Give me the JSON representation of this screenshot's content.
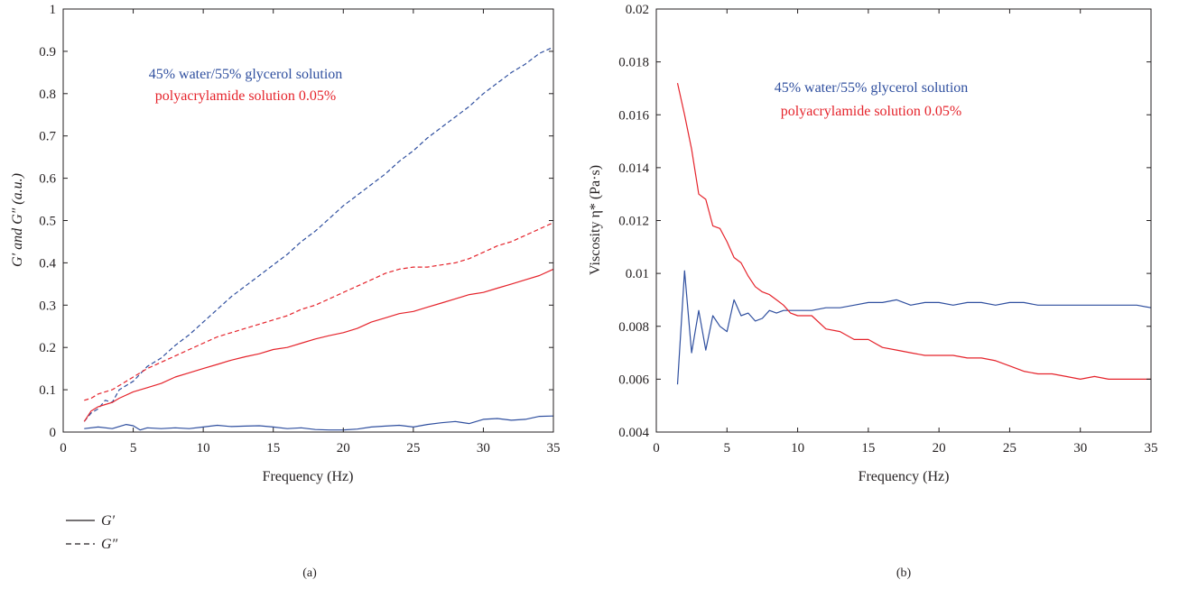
{
  "colors": {
    "water_glycerol": "#2f4f9f",
    "polyacrylamide": "#e5232b",
    "axis": "#231f20"
  },
  "legend": {
    "solid_label": "G′",
    "dashed_label": "G″"
  },
  "chart_data": [
    {
      "panel_label": "(a)",
      "type": "line",
      "xlabel": "Frequency (Hz)",
      "ylabel": "G′ and G″ (a.u.)",
      "xlim": [
        0,
        35
      ],
      "ylim": [
        0,
        1
      ],
      "xticks": [
        "0",
        "5",
        "10",
        "15",
        "20",
        "25",
        "30",
        "35"
      ],
      "yticks": [
        "0",
        "0.1",
        "0.2",
        "0.3",
        "0.4",
        "0.5",
        "0.6",
        "0.7",
        "0.8",
        "0.9",
        "1"
      ],
      "grid": false,
      "annotations": [
        "45% water/55% glycerol solution",
        "polyacrylamide solution 0.05%"
      ],
      "series": [
        {
          "fluid": "45% water/55% glycerol solution",
          "modulus": "G′",
          "style": "solid",
          "x": [
            1.5,
            2.5,
            3.5,
            4.5,
            5,
            5.5,
            6,
            7,
            8,
            9,
            10,
            11,
            12,
            13,
            14,
            15,
            16,
            17,
            18,
            19,
            20,
            21,
            22,
            23,
            24,
            25,
            26,
            27,
            28,
            29,
            30,
            31,
            32,
            33,
            34,
            35
          ],
          "y": [
            0.008,
            0.012,
            0.008,
            0.018,
            0.015,
            0.005,
            0.01,
            0.008,
            0.01,
            0.008,
            0.012,
            0.016,
            0.013,
            0.014,
            0.015,
            0.012,
            0.008,
            0.01,
            0.006,
            0.005,
            0.005,
            0.007,
            0.012,
            0.014,
            0.016,
            0.012,
            0.018,
            0.022,
            0.025,
            0.02,
            0.03,
            0.032,
            0.028,
            0.03,
            0.037,
            0.038
          ]
        },
        {
          "fluid": "45% water/55% glycerol solution",
          "modulus": "G″",
          "style": "dashed",
          "x": [
            1.5,
            2,
            2.5,
            3,
            3.5,
            4,
            5,
            6,
            7,
            8,
            9,
            10,
            11,
            12,
            13,
            14,
            15,
            16,
            17,
            18,
            19,
            20,
            21,
            22,
            23,
            24,
            25,
            26,
            27,
            28,
            29,
            30,
            31,
            32,
            33,
            34,
            35
          ],
          "y": [
            0.025,
            0.045,
            0.055,
            0.075,
            0.07,
            0.1,
            0.12,
            0.155,
            0.175,
            0.205,
            0.23,
            0.26,
            0.29,
            0.32,
            0.345,
            0.37,
            0.395,
            0.42,
            0.45,
            0.475,
            0.505,
            0.535,
            0.56,
            0.585,
            0.61,
            0.64,
            0.665,
            0.695,
            0.72,
            0.745,
            0.77,
            0.8,
            0.825,
            0.85,
            0.87,
            0.895,
            0.91
          ]
        },
        {
          "fluid": "polyacrylamide solution 0.05%",
          "modulus": "G′",
          "style": "solid",
          "x": [
            1.5,
            2,
            2.5,
            3,
            3.5,
            4,
            5,
            6,
            7,
            8,
            9,
            10,
            11,
            12,
            13,
            14,
            15,
            16,
            17,
            18,
            19,
            20,
            21,
            22,
            23,
            24,
            25,
            26,
            27,
            28,
            29,
            30,
            31,
            32,
            33,
            34,
            35
          ],
          "y": [
            0.025,
            0.05,
            0.06,
            0.065,
            0.07,
            0.08,
            0.095,
            0.105,
            0.115,
            0.13,
            0.14,
            0.15,
            0.16,
            0.17,
            0.178,
            0.185,
            0.195,
            0.2,
            0.21,
            0.22,
            0.228,
            0.235,
            0.245,
            0.26,
            0.27,
            0.28,
            0.285,
            0.295,
            0.305,
            0.315,
            0.325,
            0.33,
            0.34,
            0.35,
            0.36,
            0.37,
            0.385
          ]
        },
        {
          "fluid": "polyacrylamide solution 0.05%",
          "modulus": "G″",
          "style": "dashed",
          "x": [
            1.5,
            2,
            2.5,
            3,
            3.5,
            4,
            5,
            6,
            7,
            8,
            9,
            10,
            11,
            12,
            13,
            14,
            15,
            16,
            17,
            18,
            19,
            20,
            21,
            22,
            23,
            24,
            25,
            26,
            27,
            28,
            29,
            30,
            31,
            32,
            33,
            34,
            35
          ],
          "y": [
            0.075,
            0.08,
            0.09,
            0.095,
            0.1,
            0.11,
            0.13,
            0.15,
            0.165,
            0.18,
            0.195,
            0.21,
            0.225,
            0.235,
            0.245,
            0.255,
            0.265,
            0.275,
            0.29,
            0.3,
            0.315,
            0.33,
            0.345,
            0.36,
            0.375,
            0.385,
            0.39,
            0.39,
            0.395,
            0.4,
            0.41,
            0.425,
            0.44,
            0.45,
            0.465,
            0.48,
            0.495
          ]
        }
      ]
    },
    {
      "panel_label": "(b)",
      "type": "line",
      "xlabel": "Frequency (Hz)",
      "ylabel": "Viscosity η* (Pa·s)",
      "xlim": [
        0,
        35
      ],
      "ylim": [
        0.004,
        0.02
      ],
      "xticks": [
        "0",
        "5",
        "10",
        "15",
        "20",
        "25",
        "30",
        "35"
      ],
      "yticks": [
        "0.004",
        "0.006",
        "0.008",
        "0.01",
        "0.012",
        "0.014",
        "0.016",
        "0.018",
        "0.02"
      ],
      "grid": false,
      "annotations": [
        "45% water/55% glycerol solution",
        "polyacrylamide solution 0.05%"
      ],
      "series": [
        {
          "fluid": "45% water/55% glycerol solution",
          "style": "solid",
          "x": [
            1.5,
            2,
            2.5,
            3,
            3.5,
            4,
            4.5,
            5,
            5.5,
            6,
            6.5,
            7,
            7.5,
            8,
            8.5,
            9,
            9.5,
            10,
            11,
            12,
            13,
            14,
            15,
            16,
            17,
            18,
            19,
            20,
            21,
            22,
            23,
            24,
            25,
            26,
            27,
            28,
            29,
            30,
            31,
            32,
            33,
            34,
            35
          ],
          "y": [
            0.0058,
            0.0101,
            0.007,
            0.0086,
            0.0071,
            0.0084,
            0.008,
            0.0078,
            0.009,
            0.0084,
            0.0085,
            0.0082,
            0.0083,
            0.0086,
            0.0085,
            0.0086,
            0.0086,
            0.0086,
            0.0086,
            0.0087,
            0.0087,
            0.0088,
            0.0089,
            0.0089,
            0.009,
            0.0088,
            0.0089,
            0.0089,
            0.0088,
            0.0089,
            0.0089,
            0.0088,
            0.0089,
            0.0089,
            0.0088,
            0.0088,
            0.0088,
            0.0088,
            0.0088,
            0.0088,
            0.0088,
            0.0088,
            0.0087
          ]
        },
        {
          "fluid": "polyacrylamide solution 0.05%",
          "style": "solid",
          "x": [
            1.5,
            2,
            2.5,
            3,
            3.5,
            4,
            4.5,
            5,
            5.5,
            6,
            6.5,
            7,
            7.5,
            8,
            8.5,
            9,
            9.5,
            10,
            11,
            12,
            13,
            14,
            15,
            16,
            17,
            18,
            19,
            20,
            21,
            22,
            23,
            24,
            25,
            26,
            27,
            28,
            29,
            30,
            31,
            32,
            33,
            34,
            35
          ],
          "y": [
            0.0172,
            0.016,
            0.0147,
            0.013,
            0.0128,
            0.0118,
            0.0117,
            0.0112,
            0.0106,
            0.0104,
            0.0099,
            0.0095,
            0.0093,
            0.0092,
            0.009,
            0.0088,
            0.0085,
            0.0084,
            0.0084,
            0.0079,
            0.0078,
            0.0075,
            0.0075,
            0.0072,
            0.0071,
            0.007,
            0.0069,
            0.0069,
            0.0069,
            0.0068,
            0.0068,
            0.0067,
            0.0065,
            0.0063,
            0.0062,
            0.0062,
            0.0061,
            0.006,
            0.0061,
            0.006,
            0.006,
            0.006,
            0.006
          ]
        }
      ]
    }
  ]
}
